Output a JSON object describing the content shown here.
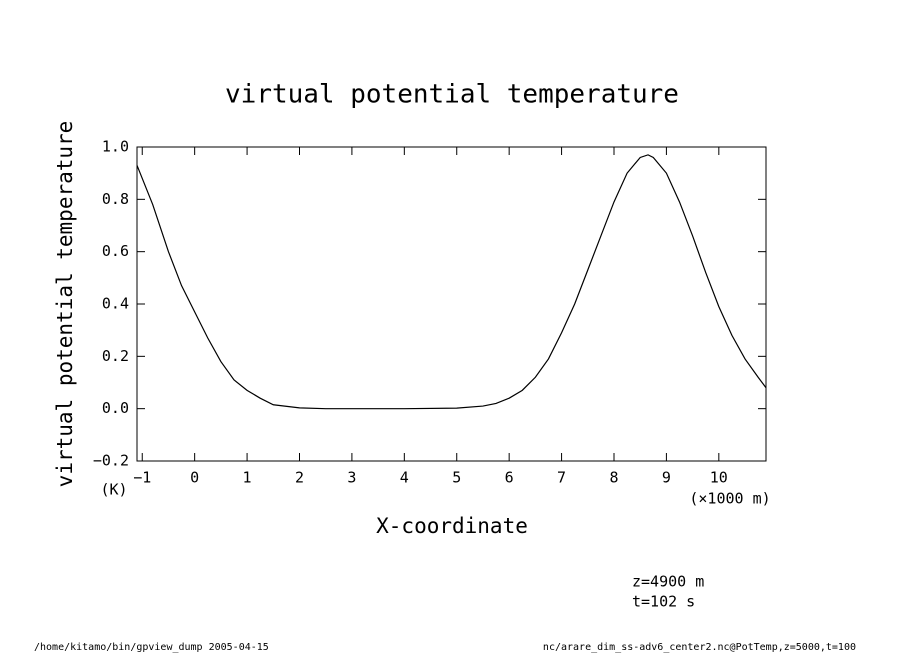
{
  "chart_data": {
    "type": "line",
    "title": "virtual potential temperature",
    "y_label": "virtual potential temperature",
    "y_units": "(K)",
    "x_label": "X-coordinate",
    "x_units": "(×1000 m)",
    "annotations": [
      "z=4900 m",
      "t=102 s"
    ],
    "footer_left": "/home/kitamo/bin/gpview_dump  2005-04-15",
    "footer_right": "nc/arare_dim_ss-adv6_center2.nc@PotTemp,z=5000,t=100",
    "xlim": [
      -1.1,
      10.9
    ],
    "ylim": [
      -0.2,
      1.0
    ],
    "xticks": [
      {
        "value": -1,
        "label": "−1"
      },
      0,
      1,
      2,
      3,
      4,
      5,
      6,
      7,
      8,
      9,
      10
    ],
    "yticks": [
      {
        "value": -0.2,
        "label": "−0.2"
      },
      {
        "value": 0,
        "label": "0.0"
      },
      0.2,
      0.4,
      0.6,
      0.8,
      {
        "value": 1,
        "label": "1.0"
      }
    ],
    "series": [
      {
        "color": "#000000",
        "x": [
          -1.1,
          -0.8,
          -0.5,
          -0.25,
          0,
          0.25,
          0.5,
          0.75,
          1,
          1.25,
          1.5,
          2,
          2.5,
          3,
          4,
          5,
          5.5,
          5.75,
          6,
          6.25,
          6.5,
          6.75,
          7,
          7.25,
          7.5,
          7.75,
          8,
          8.25,
          8.5,
          8.65,
          8.75,
          9,
          9.25,
          9.5,
          9.75,
          10,
          10.25,
          10.5,
          10.75,
          10.9
        ],
        "values": [
          0.93,
          0.78,
          0.6,
          0.47,
          0.37,
          0.27,
          0.18,
          0.11,
          0.07,
          0.04,
          0.015,
          0.003,
          0,
          0,
          0,
          0.002,
          0.01,
          0.02,
          0.04,
          0.07,
          0.12,
          0.19,
          0.29,
          0.4,
          0.53,
          0.66,
          0.79,
          0.9,
          0.96,
          0.97,
          0.96,
          0.9,
          0.79,
          0.66,
          0.52,
          0.39,
          0.28,
          0.19,
          0.12,
          0.08
        ]
      }
    ]
  }
}
